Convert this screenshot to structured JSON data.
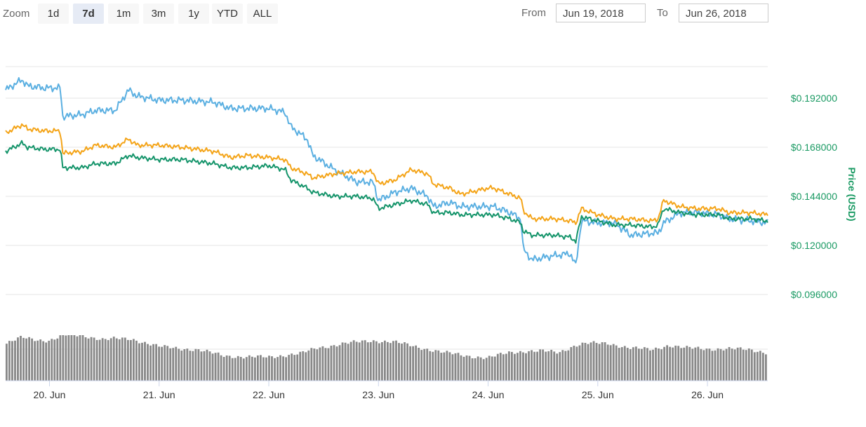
{
  "toolbar": {
    "zoom_label": "Zoom",
    "buttons": [
      "1d",
      "7d",
      "1m",
      "3m",
      "1y",
      "YTD",
      "ALL"
    ],
    "active_button": "7d",
    "from_label": "From",
    "from_value": "Jun 19, 2018",
    "to_label": "To",
    "to_value": "Jun 26, 2018"
  },
  "colors": {
    "series_orange": "#f4a418",
    "series_blue": "#5aafe1",
    "series_green": "#14946a",
    "volume": "#888888",
    "axis_text": "#1a9a63"
  },
  "chart_data": {
    "type": "line",
    "title": "",
    "ylabel": "Price (USD)",
    "ylim": [
      0.084,
      0.216
    ],
    "yticks": [
      "$0.096000",
      "$0.120000",
      "$0.144000",
      "$0.168000",
      "$0.192000"
    ],
    "ytick_values": [
      0.096,
      0.12,
      0.144,
      0.168,
      0.192
    ],
    "grid": true,
    "x_labels": [
      "20. Jun",
      "21. Jun",
      "22. Jun",
      "23. Jun",
      "24. Jun",
      "25. Jun",
      "26. Jun"
    ],
    "x_label_days": [
      20,
      21,
      22,
      23,
      24,
      25,
      26
    ],
    "xlim_days": [
      19.6,
      26.55
    ],
    "series": [
      {
        "color_key": "series_blue",
        "x_days": [
          19.6,
          19.75,
          19.8,
          19.95,
          20.1,
          20.12,
          20.3,
          20.42,
          20.6,
          20.72,
          20.8,
          21.0,
          21.2,
          21.5,
          21.65,
          21.8,
          22.0,
          22.15,
          22.2,
          22.35,
          22.4,
          22.6,
          22.8,
          22.95,
          23.0,
          23.15,
          23.3,
          23.45,
          23.5,
          23.65,
          23.75,
          24.0,
          24.05,
          24.2,
          24.3,
          24.32,
          24.4,
          24.6,
          24.75,
          24.8,
          24.85,
          25.0,
          25.15,
          25.3,
          25.5,
          25.55,
          25.6,
          25.75,
          25.9,
          26.1,
          26.2,
          26.4,
          26.55
        ],
        "values": [
          0.196,
          0.201,
          0.198,
          0.197,
          0.197,
          0.183,
          0.184,
          0.186,
          0.186,
          0.196,
          0.193,
          0.191,
          0.191,
          0.19,
          0.187,
          0.187,
          0.187,
          0.185,
          0.178,
          0.172,
          0.164,
          0.157,
          0.151,
          0.151,
          0.142,
          0.146,
          0.148,
          0.144,
          0.139,
          0.141,
          0.139,
          0.139,
          0.139,
          0.136,
          0.133,
          0.118,
          0.113,
          0.115,
          0.116,
          0.11,
          0.132,
          0.131,
          0.131,
          0.125,
          0.126,
          0.126,
          0.131,
          0.136,
          0.136,
          0.135,
          0.133,
          0.132,
          0.131
        ]
      },
      {
        "color_key": "series_orange",
        "x_days": [
          19.6,
          19.75,
          19.8,
          19.95,
          20.1,
          20.12,
          20.3,
          20.42,
          20.6,
          20.72,
          20.8,
          21.0,
          21.2,
          21.5,
          21.65,
          21.8,
          22.0,
          22.15,
          22.2,
          22.35,
          22.4,
          22.6,
          22.8,
          22.95,
          23.0,
          23.15,
          23.3,
          23.45,
          23.5,
          23.65,
          23.75,
          24.0,
          24.05,
          24.2,
          24.3,
          24.32,
          24.4,
          24.6,
          24.75,
          24.8,
          24.85,
          25.0,
          25.15,
          25.3,
          25.5,
          25.55,
          25.6,
          25.75,
          25.9,
          26.1,
          26.2,
          26.4,
          26.55
        ],
        "values": [
          0.175,
          0.179,
          0.177,
          0.176,
          0.176,
          0.165,
          0.166,
          0.169,
          0.168,
          0.172,
          0.169,
          0.169,
          0.168,
          0.166,
          0.163,
          0.164,
          0.163,
          0.162,
          0.158,
          0.155,
          0.153,
          0.155,
          0.156,
          0.156,
          0.15,
          0.152,
          0.157,
          0.155,
          0.15,
          0.148,
          0.145,
          0.148,
          0.148,
          0.145,
          0.143,
          0.137,
          0.133,
          0.133,
          0.132,
          0.131,
          0.138,
          0.135,
          0.133,
          0.133,
          0.132,
          0.133,
          0.142,
          0.139,
          0.138,
          0.138,
          0.136,
          0.136,
          0.135
        ]
      },
      {
        "color_key": "series_green",
        "x_days": [
          19.6,
          19.75,
          19.8,
          19.95,
          20.1,
          20.12,
          20.3,
          20.42,
          20.6,
          20.72,
          20.8,
          21.0,
          21.2,
          21.5,
          21.65,
          21.8,
          22.0,
          22.15,
          22.2,
          22.35,
          22.4,
          22.6,
          22.8,
          22.95,
          23.0,
          23.15,
          23.3,
          23.45,
          23.5,
          23.65,
          23.75,
          24.0,
          24.05,
          24.2,
          24.3,
          24.32,
          24.4,
          24.6,
          24.75,
          24.8,
          24.85,
          25.0,
          25.15,
          25.3,
          25.5,
          25.55,
          25.6,
          25.75,
          25.9,
          26.1,
          26.2,
          26.4,
          26.55
        ],
        "values": [
          0.166,
          0.17,
          0.168,
          0.167,
          0.167,
          0.158,
          0.158,
          0.16,
          0.16,
          0.164,
          0.163,
          0.162,
          0.162,
          0.16,
          0.158,
          0.158,
          0.159,
          0.157,
          0.152,
          0.148,
          0.146,
          0.144,
          0.144,
          0.143,
          0.138,
          0.14,
          0.142,
          0.14,
          0.136,
          0.136,
          0.135,
          0.135,
          0.135,
          0.133,
          0.131,
          0.127,
          0.125,
          0.125,
          0.124,
          0.122,
          0.134,
          0.132,
          0.13,
          0.13,
          0.129,
          0.13,
          0.138,
          0.136,
          0.135,
          0.135,
          0.133,
          0.133,
          0.132
        ]
      }
    ],
    "volume": {
      "x_days": [
        19.6,
        19.75,
        19.9,
        20.0,
        20.15,
        20.3,
        20.5,
        20.6,
        20.75,
        21.0,
        21.15,
        21.35,
        21.6,
        21.8,
        22.0,
        22.3,
        22.45,
        22.7,
        22.95,
        23.15,
        23.4,
        23.6,
        23.8,
        24.0,
        24.2,
        24.35,
        24.5,
        24.65,
        24.8,
        24.9,
        25.1,
        25.3,
        25.5,
        25.65,
        25.8,
        26.0,
        26.2,
        26.4,
        26.55
      ],
      "values": [
        0.8,
        0.95,
        0.9,
        0.88,
        1.0,
        1.0,
        0.9,
        0.92,
        0.92,
        0.75,
        0.72,
        0.68,
        0.55,
        0.52,
        0.52,
        0.6,
        0.72,
        0.82,
        0.88,
        0.85,
        0.72,
        0.62,
        0.55,
        0.5,
        0.62,
        0.65,
        0.65,
        0.62,
        0.78,
        0.82,
        0.82,
        0.72,
        0.68,
        0.78,
        0.72,
        0.7,
        0.7,
        0.68,
        0.62
      ]
    }
  }
}
